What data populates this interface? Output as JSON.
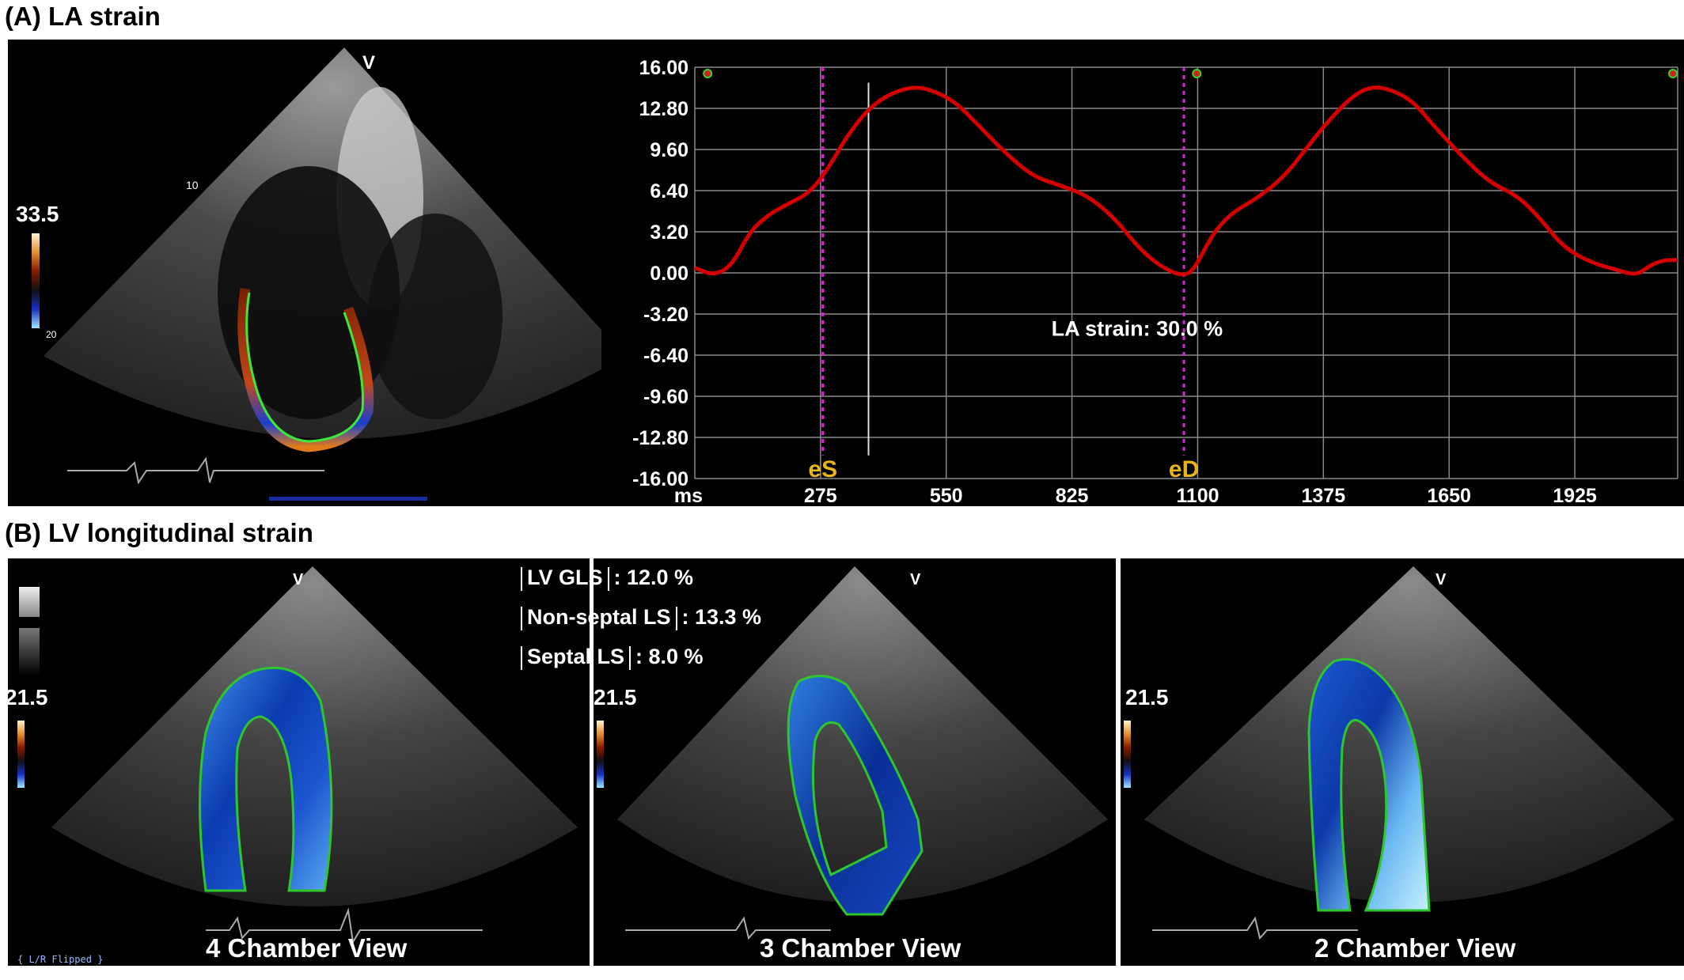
{
  "panel_a": {
    "title": "(A) LA strain",
    "colorbar_max": "33.5",
    "colorbar_min": "20",
    "v_marker": "V",
    "depth_label": "10",
    "strain_annotation": "LA strain:  30.0 %",
    "event_markers": [
      "eS",
      "eD"
    ]
  },
  "panel_b": {
    "title": "(B)  LV longitudinal strain",
    "stats": [
      {
        "label": "LV GLS",
        "value": ": 12.0 %"
      },
      {
        "label": "Non-septal LS",
        "value": ": 13.3 %"
      },
      {
        "label": "Septal LS",
        "value": ": 8.0 %"
      }
    ],
    "views": [
      {
        "label": "4 Chamber View",
        "colorbar": "21.5"
      },
      {
        "label": "3 Chamber View",
        "colorbar": "21.5"
      },
      {
        "label": "2 Chamber View",
        "colorbar": "21.5"
      }
    ],
    "flip_label": "{ L/R Flipped }",
    "v_marker": "V"
  },
  "chart_data": {
    "type": "line",
    "title": "",
    "xlabel": "ms",
    "ylabel": "",
    "x_ticks": [
      "275",
      "550",
      "825",
      "1100",
      "1375",
      "1650",
      "1925"
    ],
    "y_ticks": [
      "16.00",
      "12.80",
      "9.60",
      "6.40",
      "3.20",
      "0.00",
      "-3.20",
      "-6.40",
      "-9.60",
      "-12.80",
      "-16.00"
    ],
    "xlim": [
      0,
      2150
    ],
    "ylim": [
      -16,
      16
    ],
    "grid": true,
    "line_color": "#d40000",
    "marker_color": "#e020e0",
    "series": [
      {
        "x": [
          0,
          40,
          80,
          120,
          160,
          200,
          250,
          290,
          330,
          380,
          430,
          480,
          520,
          570,
          620,
          680,
          740,
          800,
          860,
          920,
          960,
          1000,
          1040,
          1070,
          1090,
          1110,
          1140,
          1180,
          1230,
          1290,
          1340,
          1390,
          1440,
          1480,
          1520,
          1570,
          1620,
          1680,
          1740,
          1800,
          1850,
          1900,
          1960,
          2020,
          2060,
          2090,
          2120,
          2150
        ],
        "values": [
          0.4,
          -0.2,
          0.5,
          3.2,
          4.5,
          5.3,
          6.2,
          8.0,
          10.5,
          12.8,
          14.0,
          14.5,
          14.2,
          13.3,
          11.5,
          9.3,
          7.5,
          6.8,
          6.0,
          4.2,
          2.4,
          1.0,
          0.1,
          -0.2,
          0.2,
          1.5,
          3.4,
          4.8,
          5.8,
          7.5,
          9.8,
          12.0,
          13.8,
          14.5,
          14.3,
          13.4,
          11.3,
          9.0,
          7.0,
          6.0,
          4.2,
          2.0,
          0.8,
          0.2,
          -0.2,
          0.6,
          1.0,
          1.0
        ]
      }
    ],
    "events": [
      {
        "label": "eS",
        "x": 280
      },
      {
        "label": "eD",
        "x": 1070
      }
    ],
    "annotation": "LA strain:  30.0 %"
  }
}
